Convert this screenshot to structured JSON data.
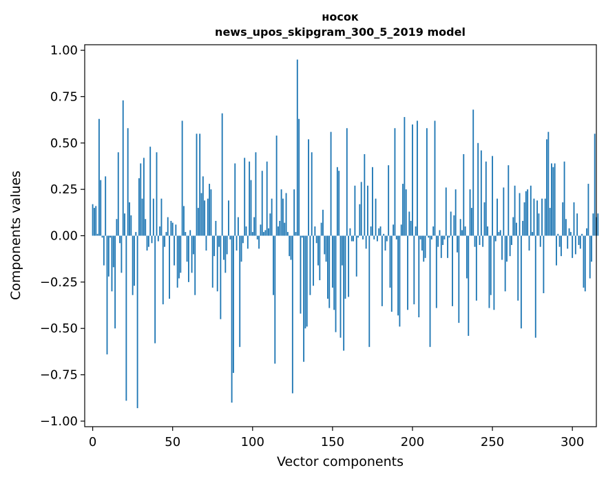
{
  "chart_data": {
    "type": "bar",
    "title": "носок",
    "subtitle": "news_upos_skipgram_300_5_2019 model",
    "xlabel": "Vector components",
    "ylabel": "Components values",
    "xlim": [
      -5,
      315
    ],
    "ylim": [
      -1.03,
      1.03
    ],
    "xticks": [
      0,
      50,
      100,
      150,
      200,
      250,
      300
    ],
    "yticks": [
      1.0,
      0.75,
      0.5,
      0.25,
      0.0,
      -0.25,
      -0.5,
      -0.75,
      -1.0
    ],
    "ytick_labels": [
      "1.00",
      "0.75",
      "0.50",
      "0.25",
      "0.00",
      "−0.25",
      "−0.50",
      "−0.75",
      "−1.00"
    ],
    "bar_color": "#1f77b4",
    "values": [
      0.17,
      0.15,
      0.16,
      0.01,
      0.63,
      0.3,
      -0.01,
      -0.16,
      0.32,
      -0.64,
      -0.22,
      -0.01,
      -0.3,
      -0.17,
      -0.5,
      0.09,
      0.45,
      -0.04,
      -0.2,
      0.73,
      0.12,
      -0.89,
      0.58,
      0.18,
      0.11,
      -0.32,
      -0.27,
      0.02,
      -0.93,
      0.31,
      0.39,
      0.2,
      0.42,
      0.09,
      -0.08,
      -0.06,
      0.48,
      -0.04,
      0.2,
      -0.58,
      0.45,
      -0.03,
      0.05,
      0.2,
      -0.37,
      -0.06,
      0.02,
      0.1,
      -0.34,
      0.08,
      0.07,
      -0.16,
      0.06,
      -0.28,
      -0.23,
      -0.2,
      0.62,
      0.16,
      0.02,
      -0.14,
      -0.25,
      0.03,
      -0.2,
      -0.1,
      -0.32,
      0.55,
      0.15,
      0.55,
      0.23,
      0.32,
      0.19,
      -0.08,
      0.2,
      0.28,
      0.25,
      -0.28,
      -0.11,
      0.08,
      -0.3,
      -0.06,
      -0.45,
      0.66,
      -0.13,
      -0.2,
      -0.1,
      0.19,
      -0.02,
      -0.9,
      -0.74,
      0.39,
      -0.08,
      0.1,
      -0.6,
      -0.14,
      -0.04,
      0.42,
      0.05,
      -0.07,
      0.4,
      0.3,
      0.02,
      0.1,
      0.45,
      -0.02,
      -0.07,
      0.06,
      0.35,
      0.02,
      0.03,
      0.4,
      0.04,
      0.12,
      0.2,
      -0.32,
      -0.69,
      0.54,
      0.05,
      0.08,
      0.25,
      0.2,
      0.07,
      0.23,
      0.02,
      -0.11,
      -0.13,
      -0.85,
      0.25,
      0.02,
      0.95,
      0.63,
      -0.42,
      -0.01,
      -0.68,
      -0.5,
      -0.49,
      0.52,
      -0.32,
      0.45,
      -0.27,
      0.05,
      -0.04,
      -0.16,
      -0.24,
      0.07,
      0.14,
      -0.1,
      -0.14,
      -0.34,
      -0.39,
      0.56,
      -0.28,
      -0.4,
      -0.52,
      0.37,
      0.35,
      -0.55,
      -0.16,
      -0.62,
      -0.34,
      0.58,
      -0.33,
      0.04,
      -0.03,
      -0.03,
      0.27,
      -0.22,
      -0.01,
      0.17,
      0.29,
      -0.02,
      0.44,
      -0.07,
      0.27,
      -0.6,
      0.05,
      0.37,
      -0.02,
      0.2,
      -0.03,
      0.04,
      0.05,
      -0.38,
      0.01,
      -0.08,
      -0.03,
      0.38,
      -0.28,
      -0.41,
      0.06,
      0.58,
      -0.02,
      -0.43,
      -0.49,
      0.06,
      0.28,
      0.64,
      0.25,
      -0.4,
      0.13,
      0.08,
      0.6,
      -0.37,
      0.05,
      0.62,
      -0.44,
      -0.02,
      -0.08,
      -0.14,
      -0.12,
      0.58,
      -0.01,
      -0.6,
      -0.02,
      0.05,
      0.62,
      -0.39,
      -0.06,
      0.03,
      -0.12,
      -0.05,
      -0.02,
      0.26,
      -0.12,
      -0.01,
      0.13,
      -0.38,
      0.11,
      0.25,
      -0.09,
      -0.47,
      0.09,
      0.03,
      0.44,
      0.05,
      -0.23,
      -0.54,
      0.25,
      0.15,
      0.68,
      -0.06,
      -0.35,
      0.5,
      -0.05,
      0.46,
      -0.06,
      0.18,
      0.4,
      0.05,
      -0.39,
      -0.32,
      0.43,
      -0.4,
      -0.03,
      0.2,
      0.02,
      0.03,
      -0.13,
      0.26,
      -0.3,
      -0.14,
      0.38,
      -0.11,
      -0.05,
      0.1,
      0.27,
      0.07,
      -0.35,
      0.23,
      -0.5,
      0.08,
      0.18,
      0.24,
      0.25,
      -0.08,
      0.27,
      0.02,
      0.2,
      -0.55,
      0.19,
      0.12,
      -0.06,
      0.2,
      -0.31,
      0.2,
      0.52,
      0.56,
      0.15,
      0.39,
      0.37,
      0.39,
      -0.16,
      0.01,
      -0.06,
      -0.11,
      0.18,
      0.4,
      0.09,
      -0.07,
      0.04,
      0.02,
      -0.12,
      0.18,
      -0.1,
      0.12,
      -0.05,
      -0.07,
      0.01,
      -0.28,
      -0.3,
      0.04,
      0.28,
      -0.23,
      -0.14,
      0.12,
      0.55,
      0.1,
      0.12
    ]
  }
}
